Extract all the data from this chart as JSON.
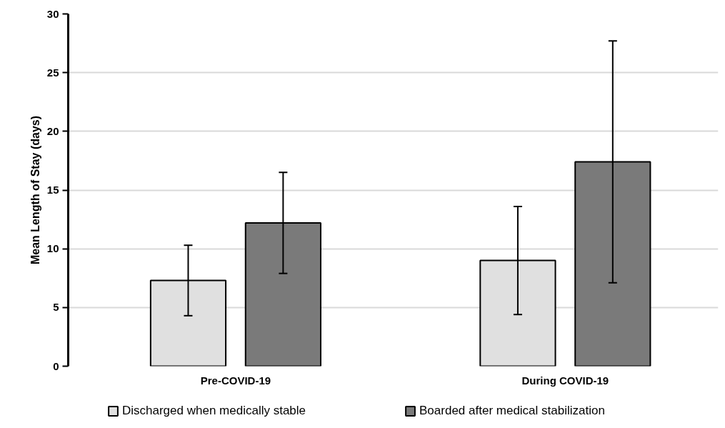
{
  "chart_data": {
    "type": "bar",
    "ylabel": "Mean Length of Stay (days)",
    "categories": [
      "Pre-COVID-19",
      "During COVID-19"
    ],
    "series": [
      {
        "name": "Discharged when medically stable",
        "color": "#e0e0e0",
        "values": [
          7.3,
          9.0
        ],
        "errors": [
          3.0,
          4.6
        ]
      },
      {
        "name": "Boarded after medical stabilization",
        "color": "#7a7a7a",
        "values": [
          12.2,
          17.4
        ],
        "errors": [
          4.3,
          10.3
        ]
      }
    ],
    "ylim": [
      0,
      30
    ],
    "yticks": [
      0,
      5,
      10,
      15,
      20,
      25,
      30
    ],
    "grid": "y",
    "legend": "bottom"
  }
}
